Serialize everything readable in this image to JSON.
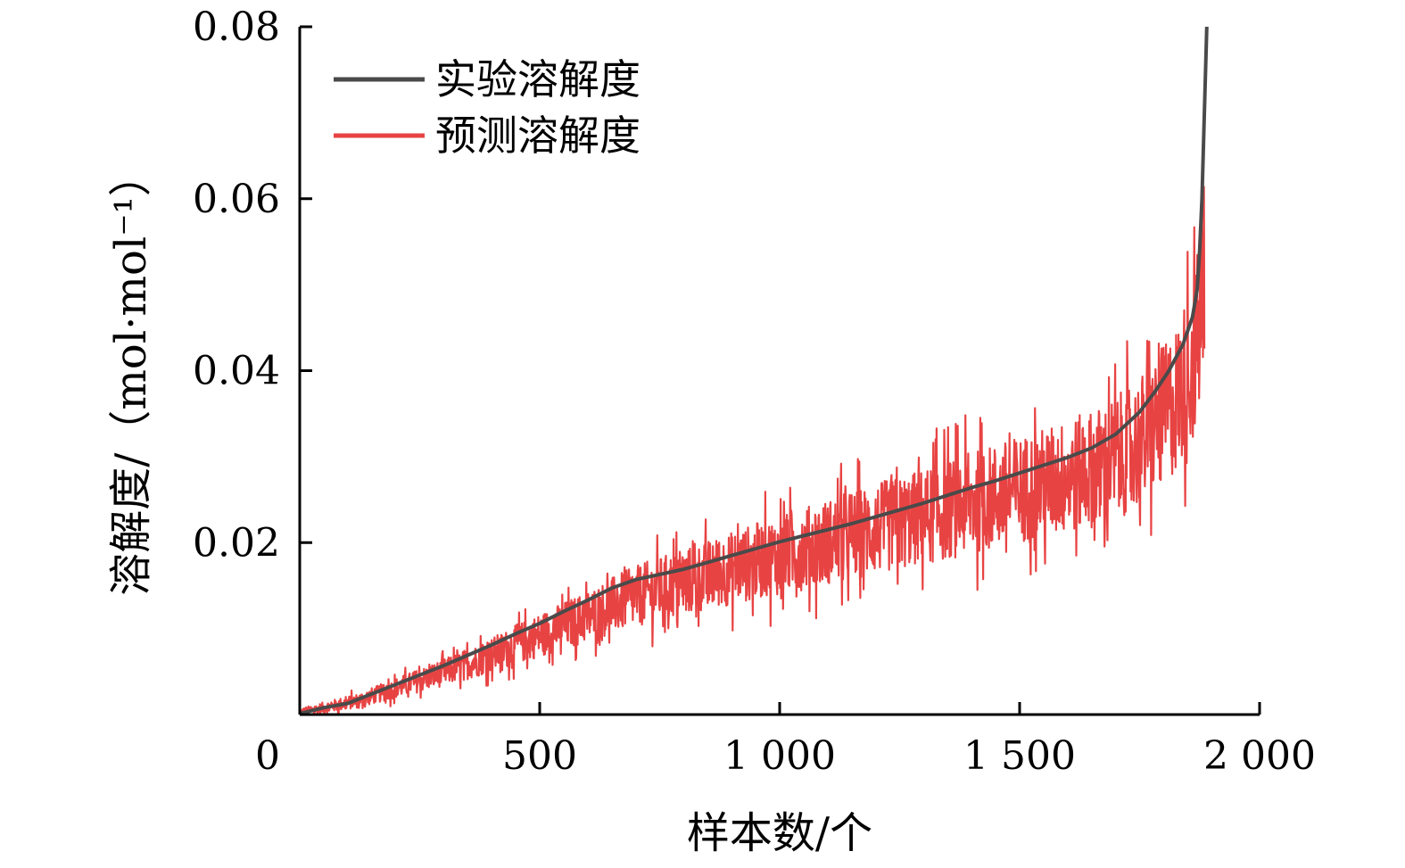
{
  "chart_data": {
    "type": "line",
    "title": "",
    "xlabel": "样本数/个",
    "ylabel": "溶解度/（mol·mol⁻¹）",
    "xlim": [
      0,
      2000
    ],
    "ylim": [
      0,
      0.08
    ],
    "x_ticks": [
      {
        "value": 0,
        "label": "0"
      },
      {
        "value": 500,
        "label": "500"
      },
      {
        "value": 1000,
        "label": "1 000"
      },
      {
        "value": 1500,
        "label": "1 500"
      },
      {
        "value": 2000,
        "label": "2 000"
      }
    ],
    "y_ticks": [
      {
        "value": 0.02,
        "label": "0.02"
      },
      {
        "value": 0.04,
        "label": "0.04"
      },
      {
        "value": 0.06,
        "label": "0.06"
      },
      {
        "value": 0.08,
        "label": "0.08"
      }
    ],
    "grid": false,
    "legend_position": "top-left",
    "series": [
      {
        "name": "实验溶解度",
        "color": "#4a4a4a",
        "x": [
          0,
          50,
          100,
          150,
          200,
          250,
          300,
          350,
          400,
          450,
          500,
          550,
          600,
          650,
          700,
          750,
          800,
          850,
          900,
          950,
          1000,
          1050,
          1100,
          1150,
          1200,
          1250,
          1300,
          1350,
          1400,
          1450,
          1500,
          1550,
          1600,
          1650,
          1700,
          1750,
          1780,
          1810,
          1840,
          1860,
          1870,
          1875,
          1880,
          1885,
          1890
        ],
        "y": [
          0.0001,
          0.0008,
          0.0013,
          0.0024,
          0.0035,
          0.0046,
          0.0057,
          0.0069,
          0.0081,
          0.0094,
          0.0106,
          0.012,
          0.0133,
          0.0147,
          0.0157,
          0.0163,
          0.0169,
          0.0177,
          0.0185,
          0.0193,
          0.0201,
          0.0208,
          0.0215,
          0.0222,
          0.023,
          0.0238,
          0.0246,
          0.0255,
          0.0264,
          0.0272,
          0.0281,
          0.029,
          0.0299,
          0.031,
          0.0326,
          0.0352,
          0.0374,
          0.0399,
          0.043,
          0.0462,
          0.0495,
          0.054,
          0.06,
          0.07,
          0.08
        ]
      },
      {
        "name": "预测溶解度",
        "color": "#e84343",
        "x": [
          0,
          60,
          120,
          180,
          240,
          300,
          360,
          420,
          480,
          540,
          600,
          660,
          720,
          780,
          840,
          900,
          960,
          1020,
          1080,
          1140,
          1200,
          1260,
          1320,
          1380,
          1440,
          1500,
          1560,
          1620,
          1680,
          1740,
          1790,
          1830,
          1860,
          1875,
          1885
        ],
        "y": [
          0.0002,
          0.0009,
          0.0016,
          0.0027,
          0.0038,
          0.0049,
          0.0061,
          0.0074,
          0.0088,
          0.0101,
          0.0114,
          0.0129,
          0.0141,
          0.0151,
          0.016,
          0.017,
          0.018,
          0.0188,
          0.0198,
          0.0207,
          0.0216,
          0.0224,
          0.0233,
          0.0243,
          0.0252,
          0.0261,
          0.027,
          0.028,
          0.0292,
          0.0312,
          0.034,
          0.037,
          0.041,
          0.045,
          0.052
        ]
      }
    ]
  }
}
